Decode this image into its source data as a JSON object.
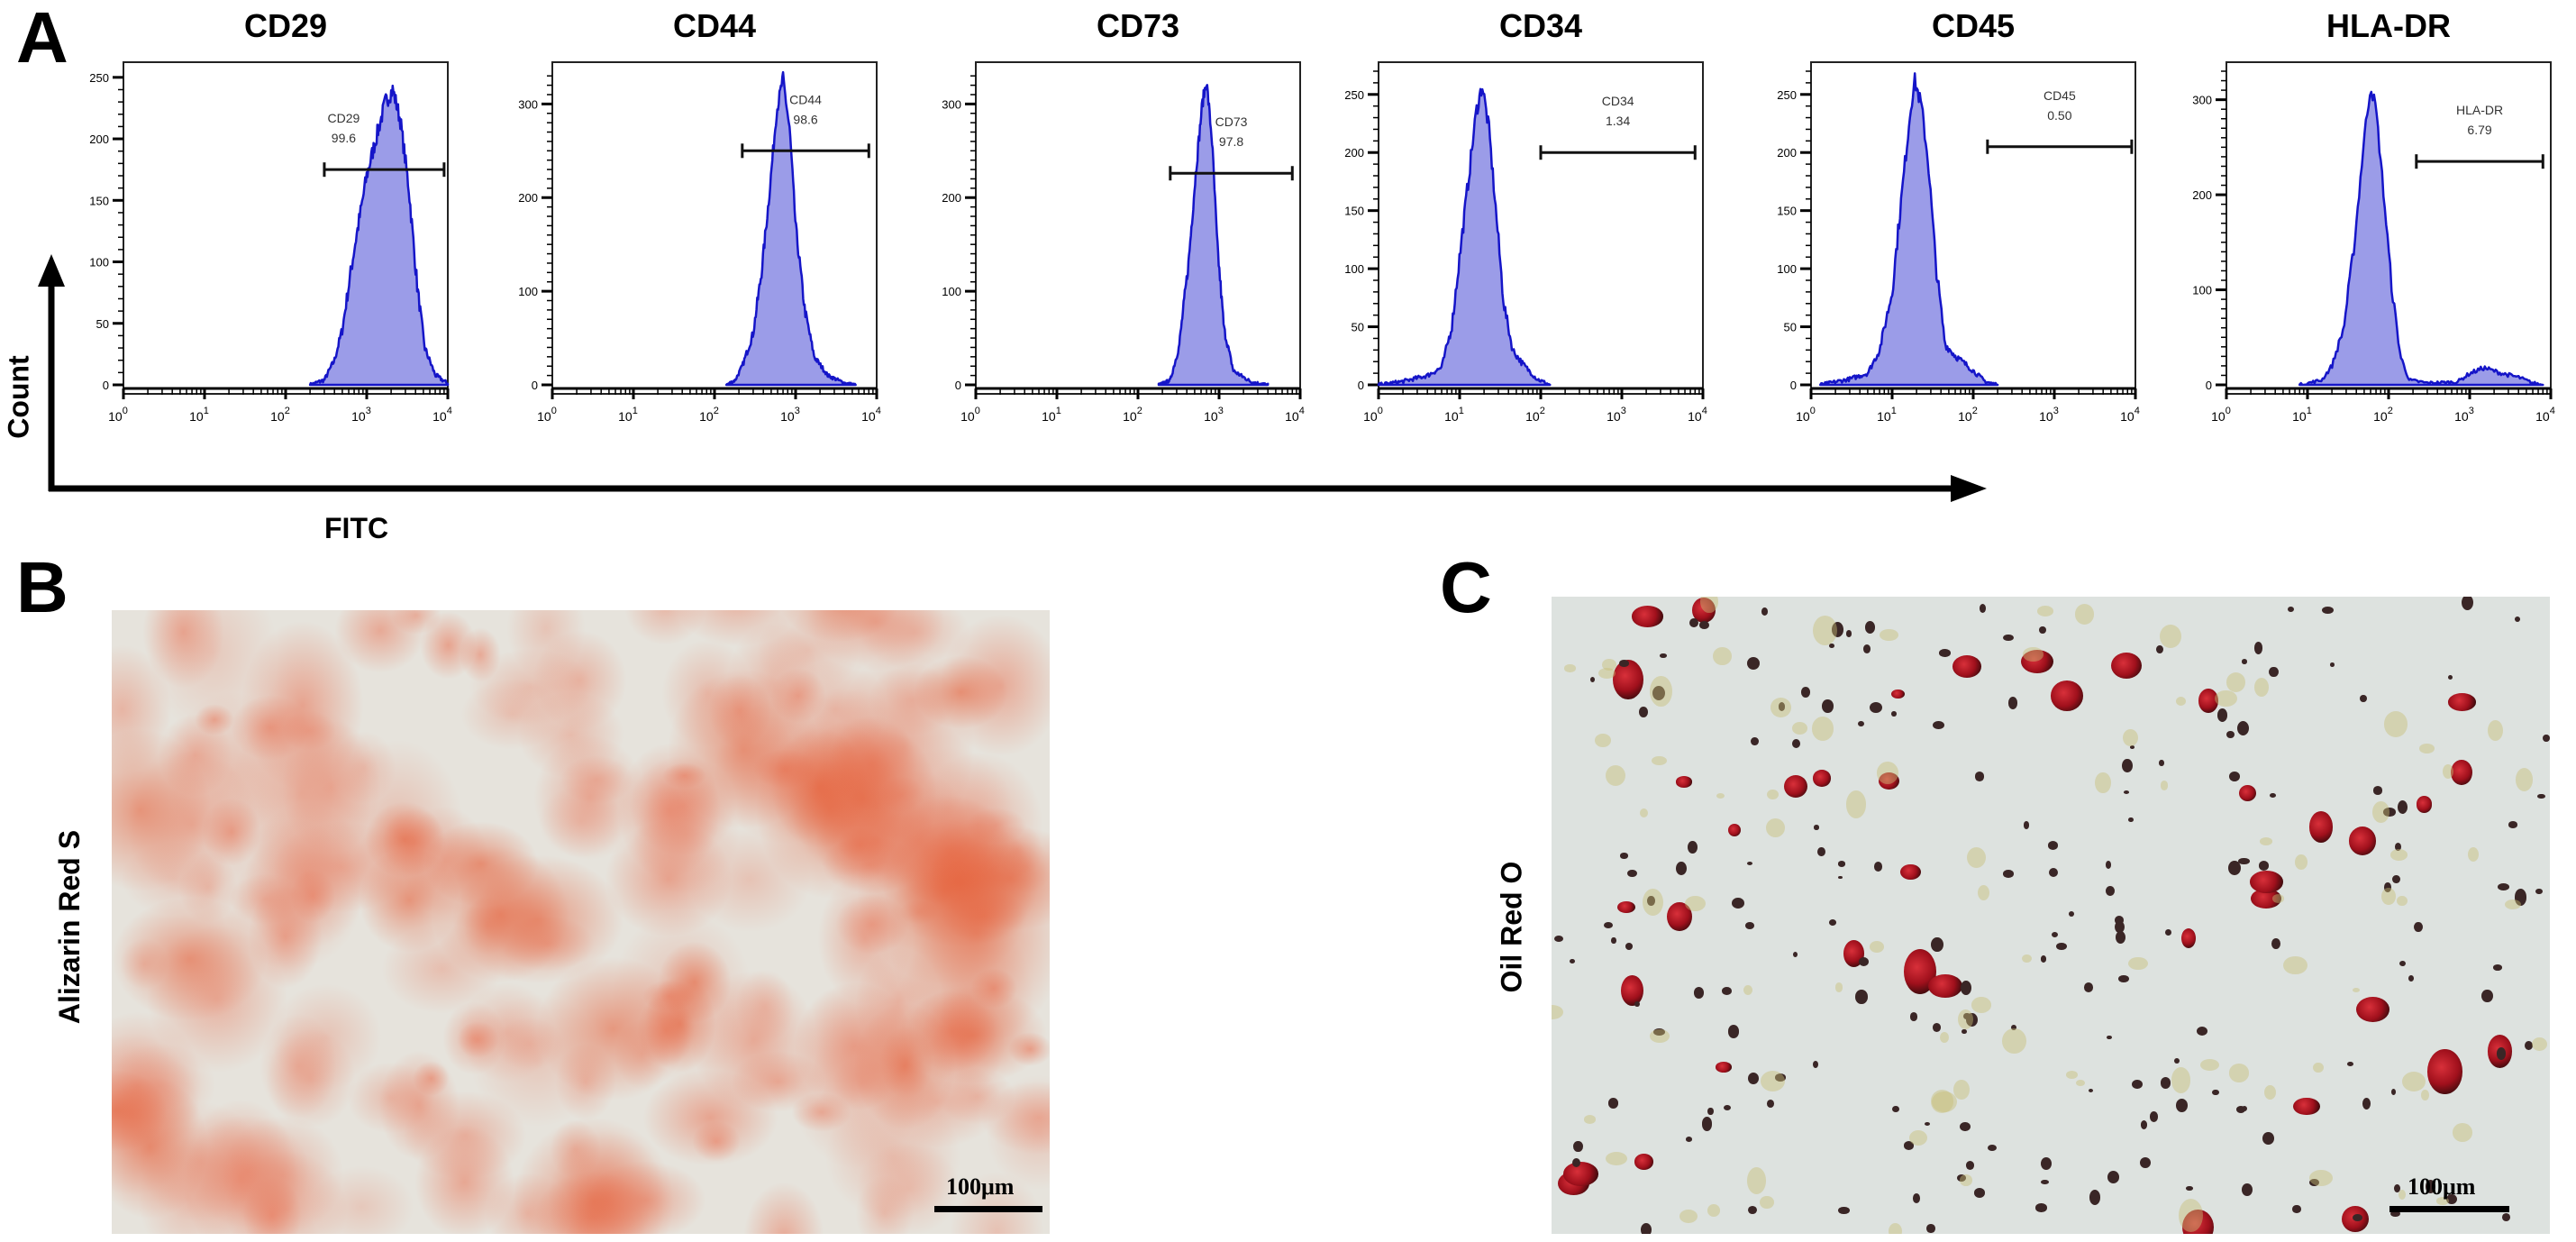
{
  "panels": {
    "a": "A",
    "b": "B",
    "c": "C"
  },
  "axes": {
    "y_label": "Count",
    "x_label": "FITC"
  },
  "x_ticks": {
    "base": "10",
    "exponents": [
      "0",
      "1",
      "2",
      "3",
      "4"
    ]
  },
  "chart_data": [
    {
      "type": "area",
      "title": "CD29",
      "gate_label": "CD29",
      "gate_value": "99.6",
      "gate_range": [
        300,
        9000
      ],
      "gate_count": 175,
      "xscale": "log",
      "xlim": [
        1,
        10000
      ],
      "ylim": [
        0,
        255
      ],
      "yticks": [
        0,
        50,
        100,
        150,
        200,
        250
      ],
      "points": [
        [
          200,
          0
        ],
        [
          300,
          4
        ],
        [
          400,
          20
        ],
        [
          500,
          45
        ],
        [
          700,
          110
        ],
        [
          1000,
          170
        ],
        [
          1300,
          200
        ],
        [
          1700,
          230
        ],
        [
          2100,
          240
        ],
        [
          2600,
          215
        ],
        [
          3300,
          160
        ],
        [
          4200,
          80
        ],
        [
          5200,
          30
        ],
        [
          7000,
          8
        ],
        [
          10000,
          1
        ]
      ]
    },
    {
      "type": "area",
      "title": "CD44",
      "gate_label": "CD44",
      "gate_value": "98.6",
      "gate_range": [
        220,
        8000
      ],
      "gate_count": 250,
      "xscale": "log",
      "xlim": [
        1,
        10000
      ],
      "ylim": [
        0,
        335
      ],
      "yticks": [
        0,
        100,
        200,
        300
      ],
      "points": [
        [
          140,
          0
        ],
        [
          180,
          5
        ],
        [
          220,
          20
        ],
        [
          300,
          55
        ],
        [
          380,
          120
        ],
        [
          470,
          200
        ],
        [
          580,
          290
        ],
        [
          700,
          328
        ],
        [
          850,
          270
        ],
        [
          1000,
          170
        ],
        [
          1300,
          80
        ],
        [
          1700,
          30
        ],
        [
          2500,
          10
        ],
        [
          4000,
          2
        ],
        [
          5500,
          0
        ]
      ]
    },
    {
      "type": "area",
      "title": "CD73",
      "gate_label": "CD73",
      "gate_value": "97.8",
      "gate_range": [
        250,
        8000
      ],
      "gate_count": 226,
      "xscale": "log",
      "xlim": [
        1,
        10000
      ],
      "ylim": [
        0,
        335
      ],
      "yticks": [
        0,
        100,
        200,
        300
      ],
      "points": [
        [
          180,
          0
        ],
        [
          250,
          5
        ],
        [
          320,
          40
        ],
        [
          420,
          130
        ],
        [
          520,
          230
        ],
        [
          620,
          300
        ],
        [
          700,
          325
        ],
        [
          820,
          260
        ],
        [
          950,
          150
        ],
        [
          1150,
          60
        ],
        [
          1500,
          15
        ],
        [
          2500,
          3
        ],
        [
          4000,
          0
        ]
      ]
    },
    {
      "type": "area",
      "title": "CD34",
      "gate_label": "CD34",
      "gate_value": "1.34",
      "gate_range": [
        100,
        8000
      ],
      "gate_count": 200,
      "xscale": "log",
      "xlim": [
        1,
        10000
      ],
      "ylim": [
        0,
        270
      ],
      "yticks": [
        0,
        50,
        100,
        150,
        200,
        250
      ],
      "points": [
        [
          1,
          0
        ],
        [
          2,
          3
        ],
        [
          4,
          8
        ],
        [
          6,
          15
        ],
        [
          8,
          50
        ],
        [
          10,
          110
        ],
        [
          13,
          180
        ],
        [
          16,
          235
        ],
        [
          19,
          258
        ],
        [
          23,
          220
        ],
        [
          28,
          150
        ],
        [
          35,
          70
        ],
        [
          45,
          30
        ],
        [
          60,
          18
        ],
        [
          90,
          5
        ],
        [
          130,
          0
        ]
      ]
    },
    {
      "type": "area",
      "title": "CD45",
      "gate_label": "CD45",
      "gate_value": "0.50",
      "gate_range": [
        150,
        9000
      ],
      "gate_count": 205,
      "xscale": "log",
      "xlim": [
        1,
        10000
      ],
      "ylim": [
        0,
        270
      ],
      "yticks": [
        0,
        50,
        100,
        150,
        200,
        250
      ],
      "points": [
        [
          1.3,
          0
        ],
        [
          3,
          5
        ],
        [
          5,
          10
        ],
        [
          7,
          30
        ],
        [
          10,
          80
        ],
        [
          13,
          160
        ],
        [
          17,
          240
        ],
        [
          19,
          262
        ],
        [
          23,
          240
        ],
        [
          28,
          190
        ],
        [
          35,
          100
        ],
        [
          45,
          35
        ],
        [
          60,
          25
        ],
        [
          90,
          15
        ],
        [
          140,
          3
        ],
        [
          200,
          0
        ]
      ]
    },
    {
      "type": "area",
      "title": "HLA-DR",
      "gate_label": "HLA-DR",
      "gate_value": "6.79",
      "gate_range": [
        220,
        8000
      ],
      "gate_count": 235,
      "xscale": "log",
      "xlim": [
        1,
        10000
      ],
      "ylim": [
        0,
        330
      ],
      "yticks": [
        0,
        100,
        200,
        300
      ],
      "points": [
        [
          8,
          0
        ],
        [
          15,
          5
        ],
        [
          20,
          20
        ],
        [
          28,
          60
        ],
        [
          38,
          150
        ],
        [
          50,
          260
        ],
        [
          60,
          315
        ],
        [
          70,
          290
        ],
        [
          85,
          210
        ],
        [
          110,
          100
        ],
        [
          140,
          30
        ],
        [
          180,
          5
        ],
        [
          300,
          2
        ],
        [
          700,
          3
        ],
        [
          1000,
          12
        ],
        [
          1500,
          18
        ],
        [
          2500,
          12
        ],
        [
          4000,
          8
        ],
        [
          6000,
          2
        ],
        [
          8000,
          0
        ]
      ]
    }
  ],
  "microscopy": {
    "b": {
      "stain_label": "Alizarin Red S",
      "scale_label": "100μm"
    },
    "c": {
      "stain_label": "Oil Red O",
      "scale_label": "100μm"
    }
  },
  "colors": {
    "histogram_fill": "#9b9ce8",
    "histogram_line": "#1515c8",
    "alizarin": "#e0704a",
    "oil_red": "#b0101c"
  }
}
